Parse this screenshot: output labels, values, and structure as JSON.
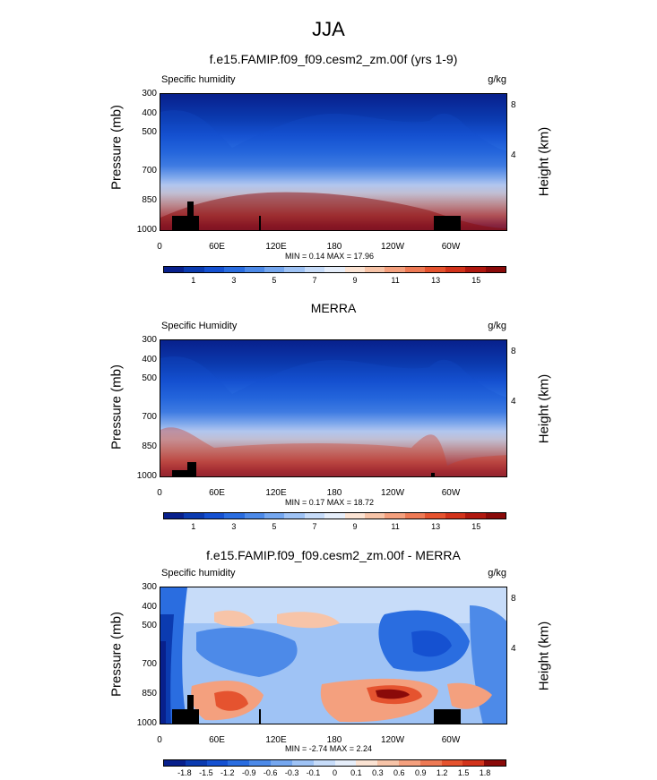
{
  "title": "JJA",
  "panels": [
    {
      "title": "f.e15.FAMIP.f09_f09.cesm2_zm.00f (yrs 1-9)",
      "variable": "Specific humidity",
      "units": "g/kg",
      "minmax": "MIN =  0.14  MAX =  17.96"
    },
    {
      "title": "MERRA",
      "variable": "Specific Humidity",
      "units": "g/kg",
      "minmax": "MIN =  0.17  MAX =  18.72"
    },
    {
      "title": "f.e15.FAMIP.f09_f09.cesm2_zm.00f - MERRA",
      "variable": "Specific humidity",
      "units": "g/kg",
      "minmax": "MIN = -2.74  MAX =  2.24"
    }
  ],
  "axes": {
    "ylabel": "Pressure (mb)",
    "y2label": "Height (km)",
    "pressure_ticks": [
      "300",
      "400",
      "500",
      "700",
      "850",
      "1000"
    ],
    "height_ticks": [
      "8",
      "4"
    ],
    "lon_ticks": [
      "0",
      "60E",
      "120E",
      "180",
      "120W",
      "60W"
    ]
  },
  "colorbars": {
    "abs_labels": [
      "1",
      "3",
      "5",
      "7",
      "9",
      "11",
      "13",
      "15"
    ],
    "abs_colors": [
      "#08208c",
      "#0b3bb0",
      "#1551d1",
      "#2a6de0",
      "#4d8ae8",
      "#75a7ef",
      "#9fc3f5",
      "#c7dcf9",
      "#e6eefa",
      "#fbe3d3",
      "#f7c4a8",
      "#f4a07e",
      "#ee7a55",
      "#e5532f",
      "#d2331b",
      "#b0180f",
      "#8a0a09"
    ],
    "diff_labels": [
      "-1.8",
      "-1.5",
      "-1.2",
      "-0.9",
      "-0.6",
      "-0.3",
      "-0.1",
      "0",
      "0.1",
      "0.3",
      "0.6",
      "0.9",
      "1.2",
      "1.5",
      "1.8"
    ],
    "diff_colors": [
      "#08208c",
      "#0b3bb0",
      "#1551d1",
      "#2a6de0",
      "#4d8ae8",
      "#75a7ef",
      "#9fc3f5",
      "#c7dcf9",
      "#e6eefa",
      "#fbe3d3",
      "#f7c4a8",
      "#f4a07e",
      "#ee7a55",
      "#e5532f",
      "#d2331b",
      "#8a0a09"
    ]
  },
  "chart_data": [
    {
      "type": "heatmap",
      "title": "f.e15.FAMIP.f09_f09.cesm2_zm.00f (yrs 1-9)",
      "subtitle": "Specific humidity",
      "units": "g/kg",
      "xlabel": "",
      "ylabel": "Pressure (mb)",
      "y2label": "Height (km)",
      "x_ticks": [
        "0",
        "60E",
        "120E",
        "180",
        "120W",
        "60W"
      ],
      "y_ticks": [
        300,
        400,
        500,
        700,
        850,
        1000
      ],
      "y2_ticks": [
        8,
        4
      ],
      "ylim": [
        1000,
        300
      ],
      "min": 0.14,
      "max": 17.96
    },
    {
      "type": "heatmap",
      "title": "MERRA",
      "subtitle": "Specific Humidity",
      "units": "g/kg",
      "xlabel": "",
      "ylabel": "Pressure (mb)",
      "y2label": "Height (km)",
      "x_ticks": [
        "0",
        "60E",
        "120E",
        "180",
        "120W",
        "60W"
      ],
      "y_ticks": [
        300,
        400,
        500,
        700,
        850,
        1000
      ],
      "y2_ticks": [
        8,
        4
      ],
      "ylim": [
        1000,
        300
      ],
      "min": 0.17,
      "max": 18.72
    },
    {
      "type": "heatmap",
      "title": "f.e15.FAMIP.f09_f09.cesm2_zm.00f - MERRA",
      "subtitle": "Specific humidity",
      "units": "g/kg",
      "xlabel": "",
      "ylabel": "Pressure (mb)",
      "y2label": "Height (km)",
      "x_ticks": [
        "0",
        "60E",
        "120E",
        "180",
        "120W",
        "60W"
      ],
      "y_ticks": [
        300,
        400,
        500,
        700,
        850,
        1000
      ],
      "y2_ticks": [
        8,
        4
      ],
      "ylim": [
        1000,
        300
      ],
      "min": -2.74,
      "max": 2.24
    }
  ]
}
